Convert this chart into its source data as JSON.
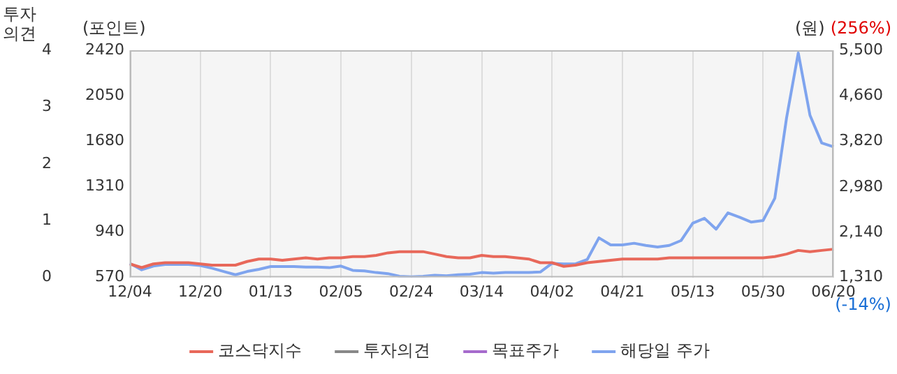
{
  "chart_data": {
    "type": "line",
    "categories": [
      "12/04",
      null,
      null,
      null,
      null,
      null,
      "12/20",
      null,
      null,
      null,
      null,
      null,
      "01/13",
      null,
      null,
      null,
      null,
      null,
      "02/05",
      null,
      null,
      null,
      null,
      null,
      "02/24",
      null,
      null,
      null,
      null,
      null,
      "03/14",
      null,
      null,
      null,
      null,
      null,
      "04/02",
      null,
      null,
      null,
      null,
      null,
      "04/21",
      null,
      null,
      null,
      null,
      null,
      "05/13",
      null,
      null,
      null,
      null,
      null,
      "05/30",
      null,
      null,
      null,
      null,
      null,
      "06/20"
    ],
    "series": [
      {
        "name": "코스닥지수",
        "color": "#e8685a",
        "values": [
          680,
          650,
          680,
          690,
          690,
          690,
          680,
          670,
          670,
          670,
          700,
          720,
          720,
          710,
          720,
          730,
          720,
          730,
          730,
          740,
          740,
          750,
          770,
          780,
          780,
          780,
          760,
          740,
          730,
          730,
          750,
          740,
          740,
          730,
          720,
          690,
          690,
          660,
          670,
          690,
          700,
          710,
          720,
          720,
          720,
          720,
          730,
          730,
          730,
          730,
          730,
          730,
          730,
          730,
          730,
          740,
          760,
          790,
          780,
          790,
          800
        ]
      },
      {
        "name": "투자의견",
        "color": "#888888",
        "axis": "y3",
        "values": [
          null,
          null,
          null,
          null,
          null,
          null,
          null,
          null,
          null,
          null,
          null,
          null,
          null,
          null,
          null,
          null,
          null,
          null,
          null,
          null,
          null,
          null,
          null,
          null,
          null,
          null,
          null,
          null,
          null,
          null,
          null,
          null,
          null,
          null,
          null,
          null,
          null,
          null,
          null,
          null,
          null,
          null,
          null,
          null,
          null,
          null,
          null,
          null,
          null,
          null,
          null,
          null,
          null,
          null,
          null,
          null,
          null,
          null,
          null,
          null,
          null
        ]
      },
      {
        "name": "목표주가",
        "color": "#a66bcc",
        "axis": "y2",
        "values": [
          null,
          null,
          null,
          null,
          null,
          null,
          null,
          null,
          null,
          null,
          null,
          null,
          null,
          null,
          null,
          null,
          null,
          null,
          null,
          null,
          null,
          null,
          null,
          null,
          null,
          null,
          null,
          null,
          null,
          null,
          null,
          null,
          null,
          null,
          null,
          null,
          null,
          null,
          null,
          null,
          null,
          null,
          null,
          null,
          null,
          null,
          null,
          null,
          null,
          null,
          null,
          null,
          null,
          null,
          null,
          null,
          null,
          null,
          null,
          null,
          null
        ]
      },
      {
        "name": "해당일 주가",
        "color": "#7fa4ee",
        "axis": "y2",
        "values": [
          1570,
          1450,
          1520,
          1550,
          1550,
          1550,
          1530,
          1480,
          1420,
          1360,
          1420,
          1460,
          1510,
          1510,
          1510,
          1500,
          1500,
          1490,
          1520,
          1440,
          1430,
          1400,
          1380,
          1330,
          1320,
          1330,
          1350,
          1340,
          1360,
          1370,
          1400,
          1390,
          1400,
          1400,
          1400,
          1410,
          1570,
          1560,
          1560,
          1640,
          2040,
          1910,
          1910,
          1940,
          1900,
          1870,
          1900,
          1990,
          2310,
          2400,
          2200,
          2500,
          2420,
          2330,
          2360,
          2770,
          4250,
          5450,
          4300,
          3790,
          3720
        ]
      }
    ],
    "ylabel": "(포인트)",
    "y2label": "(원)",
    "y3label": "투자\n의견",
    "ylim": [
      570,
      2420
    ],
    "yticks": [
      570,
      940,
      1310,
      1680,
      2050,
      2420
    ],
    "y2lim": [
      1310,
      5500
    ],
    "y2ticks": [
      {
        "value": 1310,
        "label": "1,310"
      },
      {
        "value": 2140,
        "label": "2,140"
      },
      {
        "value": 2980,
        "label": "2,980"
      },
      {
        "value": 3820,
        "label": "3,820"
      },
      {
        "value": 4660,
        "label": "4,660"
      },
      {
        "value": 5500,
        "label": "5,500"
      }
    ],
    "y3lim": [
      0,
      4
    ],
    "y3ticks": [
      0,
      1,
      2,
      3,
      4
    ],
    "annotations": [
      "(256%)",
      "(-14%)"
    ],
    "grid": "x",
    "legend": "bottom",
    "marker": "none",
    "line_style": "solid"
  }
}
